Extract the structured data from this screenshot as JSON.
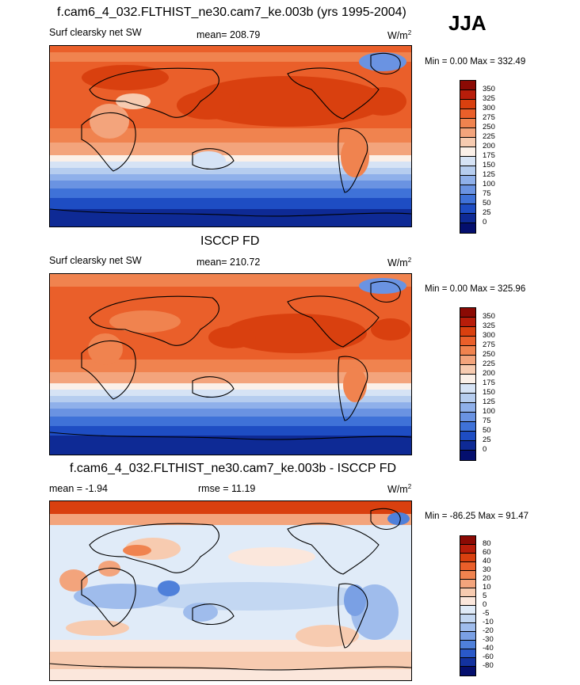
{
  "season_label": "JJA",
  "panels": [
    {
      "title": "f.cam6_4_032.FLTHIST_ne30.cam7_ke.003b (yrs 1995-2004)",
      "left_label": "Surf clearsky net SW",
      "center_label": "mean= 208.79",
      "units": "W/m",
      "units_sup": "2",
      "minmax": "Min =   0.00 Max = 332.49",
      "colorbar_labels": [
        "350",
        "325",
        "300",
        "275",
        "250",
        "225",
        "200",
        "175",
        "150",
        "125",
        "100",
        "75",
        "50",
        "25",
        "0"
      ],
      "colors": [
        "#8b0a04",
        "#b81d0a",
        "#d9400f",
        "#ea5f2a",
        "#f0834f",
        "#f3a47c",
        "#f7cbb0",
        "#fbf0e8",
        "#d6e3f5",
        "#b6cdef",
        "#8fb0ea",
        "#6a93e2",
        "#3f72d8",
        "#1e4dc3",
        "#0e2a95",
        "#040f6e"
      ]
    },
    {
      "title": "ISCCP FD",
      "left_label": "Surf clearsky net SW",
      "center_label": "mean= 210.72",
      "units": "W/m",
      "units_sup": "2",
      "minmax": "Min =   0.00 Max = 325.96",
      "colorbar_labels": [
        "350",
        "325",
        "300",
        "275",
        "250",
        "225",
        "200",
        "175",
        "150",
        "125",
        "100",
        "75",
        "50",
        "25",
        "0"
      ],
      "colors": [
        "#8b0a04",
        "#b81d0a",
        "#d9400f",
        "#ea5f2a",
        "#f0834f",
        "#f3a47c",
        "#f7cbb0",
        "#fbf0e8",
        "#d6e3f5",
        "#b6cdef",
        "#8fb0ea",
        "#6a93e2",
        "#3f72d8",
        "#1e4dc3",
        "#0e2a95",
        "#040f6e"
      ]
    },
    {
      "title": "f.cam6_4_032.FLTHIST_ne30.cam7_ke.003b - ISCCP FD",
      "left_label": "mean =  -1.94",
      "center_label": "rmse =  11.19",
      "units": "W/m",
      "units_sup": "2",
      "minmax": "Min = -86.25 Max =  91.47",
      "colorbar_labels": [
        "80",
        "60",
        "40",
        "30",
        "20",
        "10",
        "5",
        "0",
        "-5",
        "-10",
        "-20",
        "-30",
        "-40",
        "-60",
        "-80"
      ],
      "colors": [
        "#8b0a04",
        "#b81d0a",
        "#d9400f",
        "#ea5f2a",
        "#f0834f",
        "#f3a47c",
        "#f7cbb0",
        "#fbe7dc",
        "#e0ebf8",
        "#c3d7f2",
        "#9fbcec",
        "#7aa0e4",
        "#4f80da",
        "#2a59c9",
        "#13329f",
        "#040f6e"
      ]
    }
  ]
}
